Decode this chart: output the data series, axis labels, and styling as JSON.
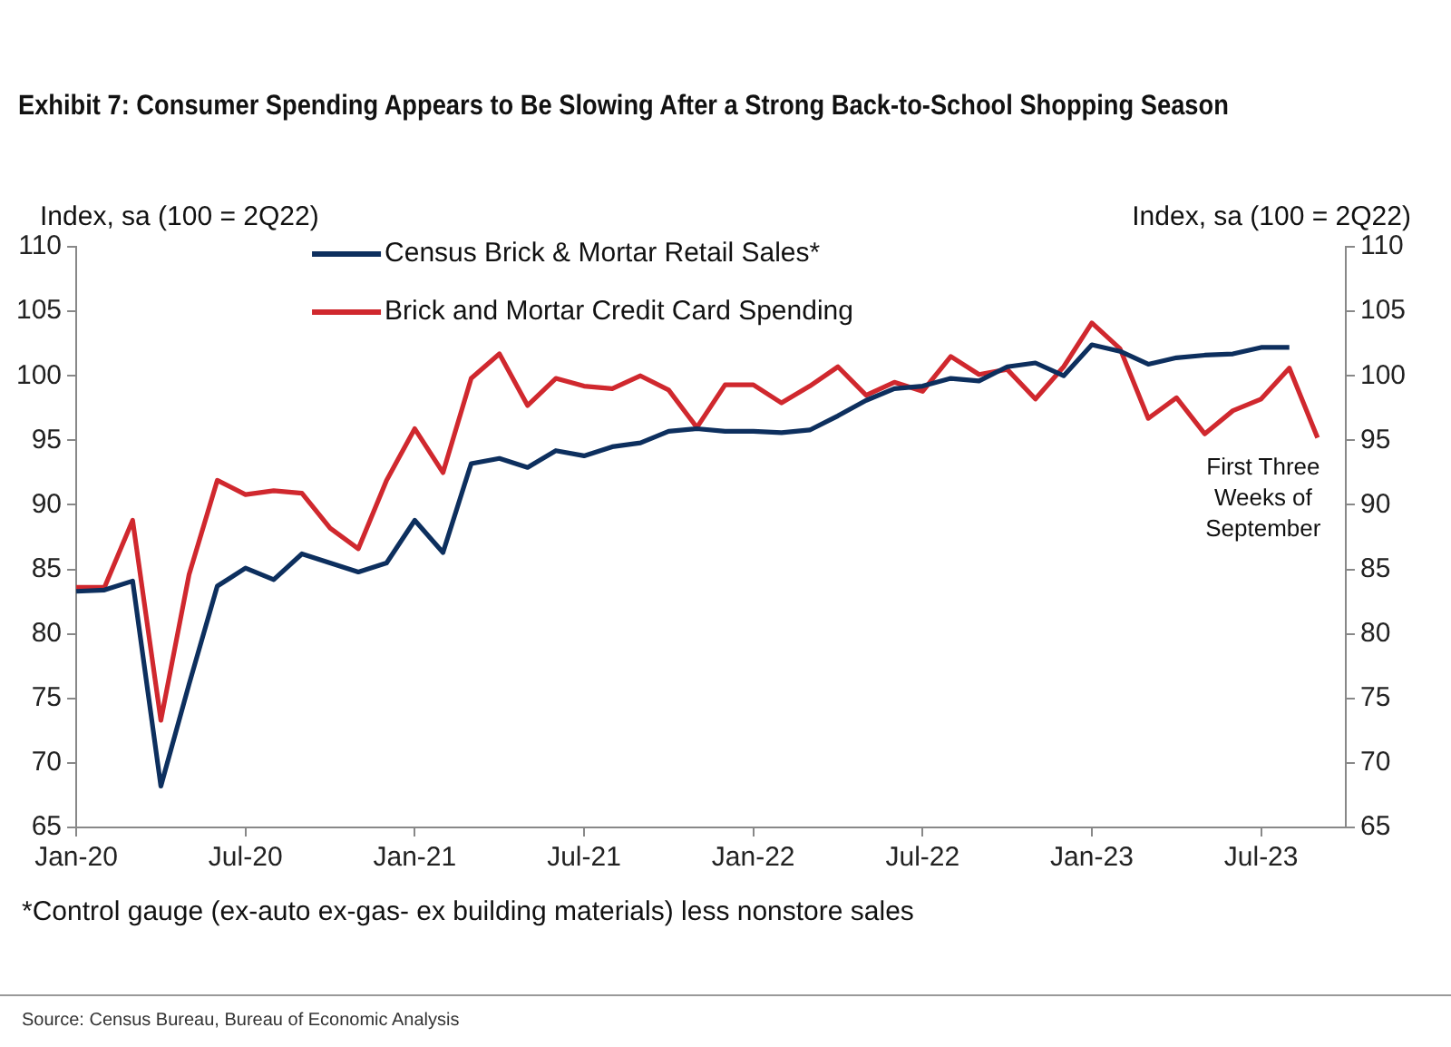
{
  "chart_data": {
    "type": "line",
    "title": "Exhibit 7: Consumer Spending Appears to Be Slowing After a Strong Back-to-School Shopping Season",
    "ylabel": "Index, sa (100 = 2Q22)",
    "y2label": "Index, sa (100 = 2Q22)",
    "categories": [
      "Jan-20",
      null,
      null,
      null,
      null,
      null,
      "Jul-20",
      null,
      null,
      null,
      null,
      null,
      "Jan-21",
      null,
      null,
      null,
      null,
      null,
      "Jul-21",
      null,
      null,
      null,
      null,
      null,
      "Jan-22",
      null,
      null,
      null,
      null,
      null,
      "Jul-22",
      null,
      null,
      null,
      null,
      null,
      "Jan-23",
      null,
      null,
      null,
      null,
      null,
      "Jul-23",
      null,
      null,
      null
    ],
    "series": [
      {
        "name": "Census Brick & Mortar Retail Sales*",
        "color": "#0d2f5e",
        "values": [
          83.3,
          83.4,
          84.1,
          68.2,
          76.1,
          83.7,
          85.1,
          84.2,
          86.2,
          85.5,
          84.8,
          85.5,
          88.8,
          86.3,
          93.2,
          93.6,
          92.9,
          94.2,
          93.8,
          94.5,
          94.8,
          95.7,
          95.9,
          95.7,
          95.7,
          95.6,
          95.8,
          96.9,
          98.1,
          99.0,
          99.2,
          99.8,
          99.6,
          100.7,
          101.0,
          100.0,
          102.4,
          101.9,
          100.9,
          101.4,
          101.6,
          101.7,
          102.2,
          102.2,
          null,
          null
        ]
      },
      {
        "name": "Brick and Mortar Credit Card Spending",
        "color": "#d0282e",
        "values": [
          83.6,
          83.6,
          88.8,
          73.3,
          84.6,
          91.9,
          90.8,
          91.1,
          90.9,
          88.2,
          86.6,
          91.9,
          95.9,
          92.5,
          99.8,
          101.7,
          97.7,
          99.8,
          99.2,
          99.0,
          100.0,
          98.9,
          96.0,
          99.3,
          99.3,
          97.9,
          99.2,
          100.7,
          98.5,
          99.5,
          98.8,
          101.5,
          100.1,
          100.5,
          98.2,
          100.7,
          104.1,
          102.1,
          96.7,
          98.3,
          95.5,
          97.3,
          98.2,
          100.6,
          95.2,
          null
        ]
      }
    ],
    "ylim": [
      65,
      110
    ],
    "yticks": [
      65,
      70,
      75,
      80,
      85,
      90,
      95,
      100,
      105,
      110
    ],
    "y2lim": [
      65,
      110
    ],
    "y2ticks": [
      65,
      70,
      75,
      80,
      85,
      90,
      95,
      100,
      105,
      110
    ],
    "grid": false,
    "legend": "top",
    "marker": "none",
    "line_style": "solid",
    "annotations": [
      "First Three Weeks of September",
      "*Control gauge (ex-auto ex-gas- ex building materials) less nonstore sales",
      "Source: Census Bureau, Bureau of Economic Analysis"
    ]
  }
}
